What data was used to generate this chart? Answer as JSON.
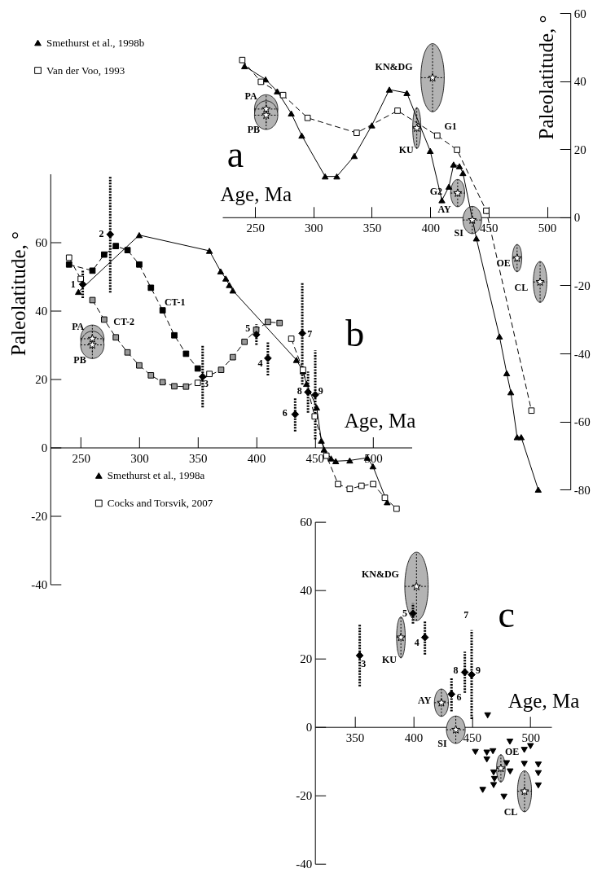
{
  "chart_data": [
    {
      "type": "line",
      "title": "a",
      "xlabel": "Age, Ma",
      "ylabel": "Paleolatitude, °",
      "xlim": [
        222,
        520
      ],
      "ylim": [
        -80,
        60
      ],
      "xticks": [
        250,
        300,
        350,
        400,
        450,
        500
      ],
      "yticks": [
        -80,
        -60,
        -40,
        -20,
        0,
        20,
        40,
        60
      ],
      "legend": "top left",
      "series": [
        {
          "name": "Smethurst et al., 1998b",
          "color": "#000000",
          "marker": "triangle",
          "line_style": "solid",
          "x": [
            241,
            259,
            269,
            281,
            290,
            310,
            320,
            335,
            350,
            365,
            380,
            400,
            410,
            416,
            420,
            425,
            428,
            439.5,
            459.3,
            465.5,
            469,
            474.4,
            477.9,
            492.5
          ],
          "values": [
            44.4,
            40.5,
            37,
            30.5,
            24,
            12,
            12,
            18,
            27,
            37.5,
            36.5,
            19.5,
            5,
            9,
            15.5,
            15,
            13,
            -6.2,
            -35,
            -45.8,
            -51.4,
            -64.6,
            -64.6,
            -80
          ]
        },
        {
          "name": "Van der Voo, 1993",
          "color": "#ffffff",
          "marker": "square",
          "line_style": "dashed",
          "x": [
            239,
            255,
            274,
            295,
            337,
            372,
            406,
            423,
            448,
            486.7
          ],
          "values": [
            46.2,
            39.8,
            35.9,
            29.2,
            24.8,
            31.3,
            24,
            19.8,
            1.9,
            -56.8
          ]
        },
        {
          "type": "scatter",
          "color": "#ffffff",
          "marker": "star",
          "x": [
            259.5,
            259.5,
            402,
            388.5,
            423.5,
            436,
            474.4,
            494.1
          ],
          "values": [
            31.8,
            30,
            41,
            26.2,
            7.1,
            -0.8,
            -12,
            -19
          ],
          "errors": [
            4.2,
            4.2,
            10,
            6,
            4,
            4,
            4,
            6
          ],
          "xerrors": [
            10,
            10,
            10,
            3.5,
            6,
            8,
            4,
            5.8
          ]
        }
      ],
      "annotations": [
        "PA",
        "PB",
        "KN&DG",
        "KU",
        "G1",
        "G2",
        "AY",
        "SI",
        "OE",
        "CL"
      ]
    },
    {
      "type": "line",
      "title": "b",
      "xlabel": "Age, Ma",
      "ylabel": "Paleolatitude, °",
      "xlim": [
        224,
        533
      ],
      "ylim": [
        -40,
        80
      ],
      "xticks": [
        250,
        300,
        350,
        400,
        450,
        500
      ],
      "yticks": [
        -40,
        -20,
        0,
        20,
        40,
        60
      ],
      "legend": "bottom left",
      "series": [
        {
          "name": "Smethurst et al., 1998a",
          "color": "#000000",
          "marker": "triangle",
          "line_style": "solid",
          "x": [
            248,
            300,
            360,
            369.6,
            374,
            377,
            380,
            434.4,
            440,
            443,
            451.7,
            455.7,
            458,
            464,
            468,
            480,
            495,
            499.8,
            512
          ],
          "values": [
            45.5,
            62.1,
            57.5,
            51.5,
            49.4,
            47.5,
            45.9,
            25.6,
            22.3,
            18.6,
            11.7,
            2,
            -0.6,
            -3.2,
            -4,
            -3.8,
            -3,
            -5.5,
            -16
          ]
        },
        {
          "name": "Cocks and Torsvik, 2007",
          "color": "#ffffff",
          "marker": "square",
          "line_style": "dashed",
          "x": [
            240,
            250,
            300,
            350,
            360,
            400,
            430,
            440,
            450,
            460,
            470,
            480,
            490,
            500,
            510,
            520
          ],
          "values": [
            55.5,
            49.3,
            null,
            18.9,
            21.5,
            null,
            31.8,
            22.7,
            9.1,
            -2.4,
            -10.7,
            -12.1,
            -11.2,
            -10.7,
            -14.7,
            -17.9
          ]
        },
        {
          "color": "#000000",
          "marker": "square",
          "line_style": "dashed",
          "x": [
            240,
            260,
            270,
            280,
            290,
            300,
            310,
            320,
            330,
            340,
            350
          ],
          "values": [
            53.5,
            51.7,
            56.4,
            58.9,
            57.7,
            53.5,
            46.7,
            40.1,
            32.8,
            27.4,
            23.1
          ]
        },
        {
          "color": "#999999",
          "marker": "square",
          "line_style": "dashed",
          "x": [
            260,
            270,
            280,
            290,
            300,
            310,
            320,
            330,
            340,
            370,
            380,
            390,
            400,
            410,
            420
          ],
          "values": [
            43.1,
            37.4,
            32.2,
            27.8,
            24,
            21.1,
            19.1,
            17.9,
            17.8,
            22.7,
            26.4,
            30.9,
            34.4,
            36.7,
            36.4
          ]
        },
        {
          "type": "scatter",
          "color": "#000000",
          "marker": "diamond",
          "x": [
            251.7,
            275.2,
            354.2,
            410,
            400.2,
            433.3,
            439.4,
            444.3,
            450.5
          ],
          "values": [
            47.7,
            62.3,
            20.7,
            26.1,
            33,
            9.7,
            33.4,
            16.2,
            15.4
          ],
          "errors": [
            4,
            17,
            9,
            5,
            3,
            5,
            15,
            6,
            13
          ]
        },
        {
          "type": "scatter",
          "color": "#ffffff",
          "marker": "star",
          "x": [
            259.9,
            259.9
          ],
          "values": [
            31.8,
            30
          ],
          "errors": [
            4,
            4
          ],
          "xerrors": [
            10,
            10
          ]
        }
      ],
      "annotations": [
        "1",
        "2",
        "3",
        "4",
        "5",
        "6",
        "7",
        "8",
        "9",
        "PA",
        "PB",
        "CT-1",
        "CT-2"
      ]
    },
    {
      "type": "scatter",
      "title": "c",
      "xlabel": "Age, Ma",
      "xlim": [
        316,
        518
      ],
      "ylim": [
        -40,
        60
      ],
      "xticks": [
        350,
        400,
        450,
        500
      ],
      "yticks": [
        -40,
        -20,
        0,
        20,
        40,
        60
      ],
      "series": [
        {
          "color": "#000000",
          "marker": "diamond",
          "x": [
            354.2,
            399.7,
            409.9,
            432.6,
            444,
            449.8
          ],
          "values": [
            20.9,
            33.2,
            26.2,
            9.6,
            16,
            15.3
          ],
          "errors": [
            9,
            3,
            5,
            5,
            6,
            13
          ]
        },
        {
          "color": "#ffffff",
          "marker": "star",
          "x": [
            402.7,
            389.4,
            424,
            436.3,
            474.8,
            495
          ],
          "values": [
            41.1,
            26.2,
            7.1,
            -0.8,
            -12.1,
            -18.8
          ],
          "errors": [
            10,
            6,
            4,
            4,
            4,
            6
          ],
          "xerrors": [
            10,
            3.7,
            6,
            8,
            3.7,
            6
          ]
        },
        {
          "color": "#000000",
          "marker": "triangle-down",
          "x": [
            463.5,
            453,
            462.8,
            468,
            462.8,
            482.5,
            494.8,
            500.1,
            479.7,
            494.8,
            506.8,
            468.6,
            482.7,
            506.8,
            469.3,
            468.6,
            506.8,
            459.3,
            477.4
          ],
          "values": [
            3.4,
            -7.3,
            -7.5,
            -7.1,
            -9.5,
            -4.3,
            -6.7,
            -5.6,
            -10.6,
            -10.8,
            -11,
            -13.3,
            -13,
            -13.5,
            -15.2,
            -17,
            -17.1,
            -18.4,
            -20.4
          ]
        }
      ],
      "annotations": [
        "KN&DG",
        "5",
        "KU",
        "4",
        "3",
        "7",
        "8",
        "9",
        "6",
        "AY",
        "SI",
        "OE",
        "CL"
      ]
    }
  ]
}
